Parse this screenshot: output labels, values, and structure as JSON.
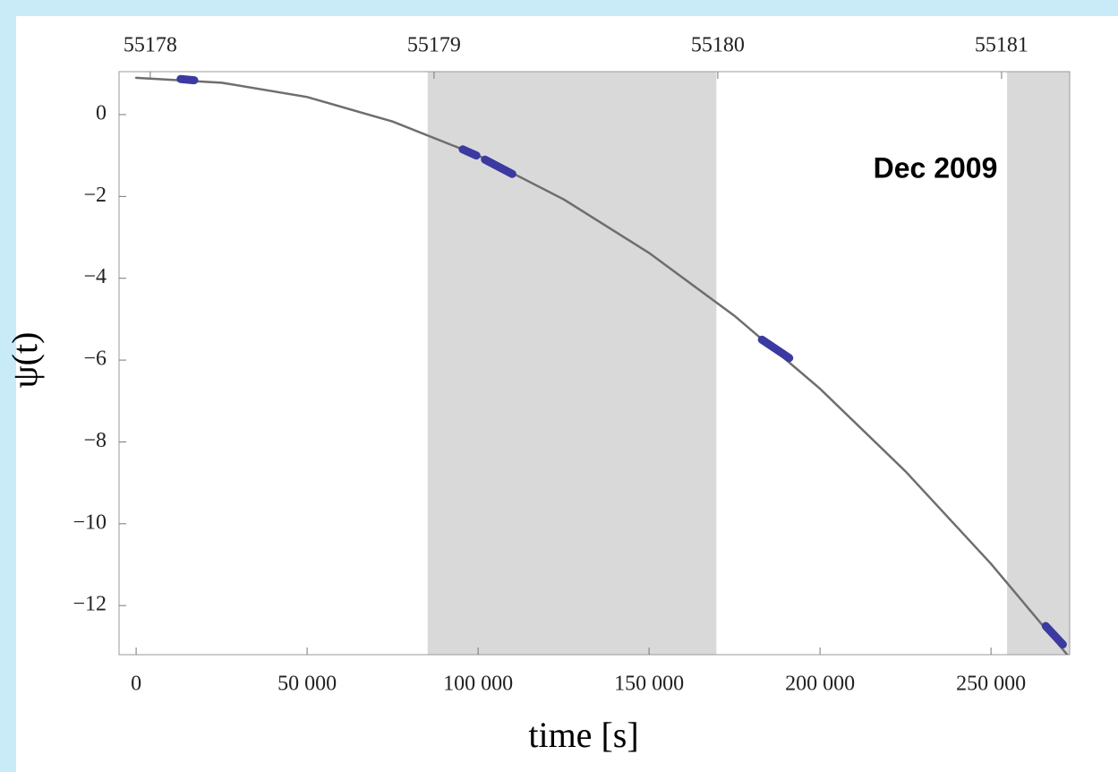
{
  "chart_data": {
    "type": "line",
    "annotation": "Dec 2009",
    "xlabel": "time [s]",
    "ylabel": "ψ(t)",
    "xlim": [
      -5000,
      273000
    ],
    "ylim": [
      -13.2,
      1.05
    ],
    "xticks": [
      0,
      {
        "value": 50000,
        "label": "50 000"
      },
      {
        "value": 100000,
        "label": "100 000"
      },
      {
        "value": 150000,
        "label": "150 000"
      },
      {
        "value": 200000,
        "label": "200 000"
      },
      {
        "value": 250000,
        "label": "250 000"
      }
    ],
    "yticks": [
      0,
      {
        "value": -2,
        "label": "−2"
      },
      {
        "value": -4,
        "label": "−4"
      },
      {
        "value": -6,
        "label": "−6"
      },
      {
        "value": -8,
        "label": "−8"
      },
      {
        "value": -10,
        "label": "−10"
      },
      {
        "value": -12,
        "label": "−12"
      }
    ],
    "x2lim": [
      55177.89,
      55181.24
    ],
    "x2ticks": [
      55178,
      55179,
      55180,
      55181
    ],
    "shaded_spans": [
      [
        85250,
        169700
      ],
      [
        254700,
        273000
      ]
    ],
    "series": [
      {
        "color": "#6e6e6e",
        "x": [
          0,
          25000,
          50000,
          75000,
          100000,
          125000,
          150000,
          175000,
          200000,
          225000,
          250000,
          275000
        ],
        "values": [
          0.9,
          0.78,
          0.43,
          -0.17,
          -1.0,
          -2.07,
          -3.38,
          -4.92,
          -6.7,
          -8.72,
          -10.98,
          -13.47
        ]
      },
      {
        "color": "#3a3aa0",
        "x": [
          13000,
          17000,
          17000,
          95500,
          99500,
          99500,
          102000,
          110000,
          110000,
          183000,
          191000,
          191000,
          266000,
          271000
        ],
        "values": [
          0.87,
          0.84,
          null,
          -0.85,
          -1.0,
          null,
          -1.1,
          -1.45,
          null,
          -5.5,
          -5.95,
          null,
          -12.5,
          -12.95
        ]
      }
    ]
  }
}
